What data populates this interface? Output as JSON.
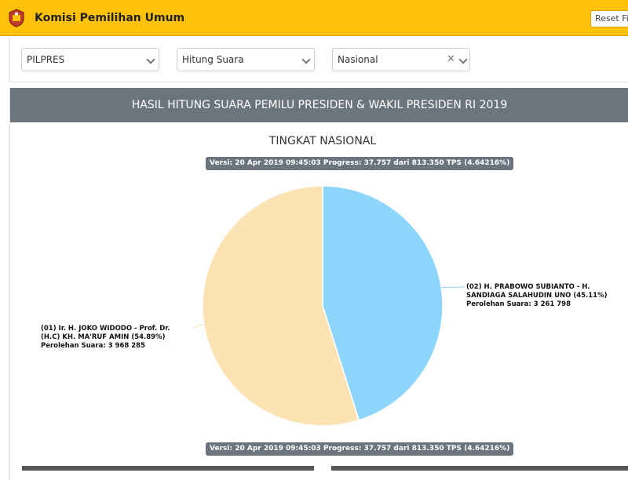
{
  "header": {
    "app_title": "Komisi Pemilihan Umum",
    "reset_label": "Reset Filter",
    "accent_color": "#fdc209",
    "logo_icon": "kpu-emblem"
  },
  "filters": {
    "election": "PILPRES",
    "mode": "Hitung Suara",
    "region": "Nasional"
  },
  "panel": {
    "heading": "HASIL HITUNG SUARA PEMILU PRESIDEN & WAKIL PRESIDEN RI 2019",
    "header_color": "#6c757d"
  },
  "chart_data": {
    "type": "pie",
    "title": "TINGKAT NASIONAL",
    "version_note": "Versi: 20 Apr 2019 09:45:03 Progress: 37.757 dari 813.350 TPS (4.64216%)",
    "slices": [
      {
        "label": "(02) H. PRABOWO SUBIANTO - H. SANDIAGA SALAHUDIN UNO (45.11%)",
        "votes_text": "Perolehan Suara: 3 261 798",
        "value": 3261798,
        "percent": 45.11,
        "color": "#8ed5fc"
      },
      {
        "label": "(01) Ir. H. JOKO WIDODO - Prof. Dr. (H.C) KH. MA'RUF AMIN (54.89%)",
        "votes_text": "Perolehan Suara: 3 968 285",
        "value": 3968285,
        "percent": 54.89,
        "color": "#fde2b4"
      }
    ]
  }
}
